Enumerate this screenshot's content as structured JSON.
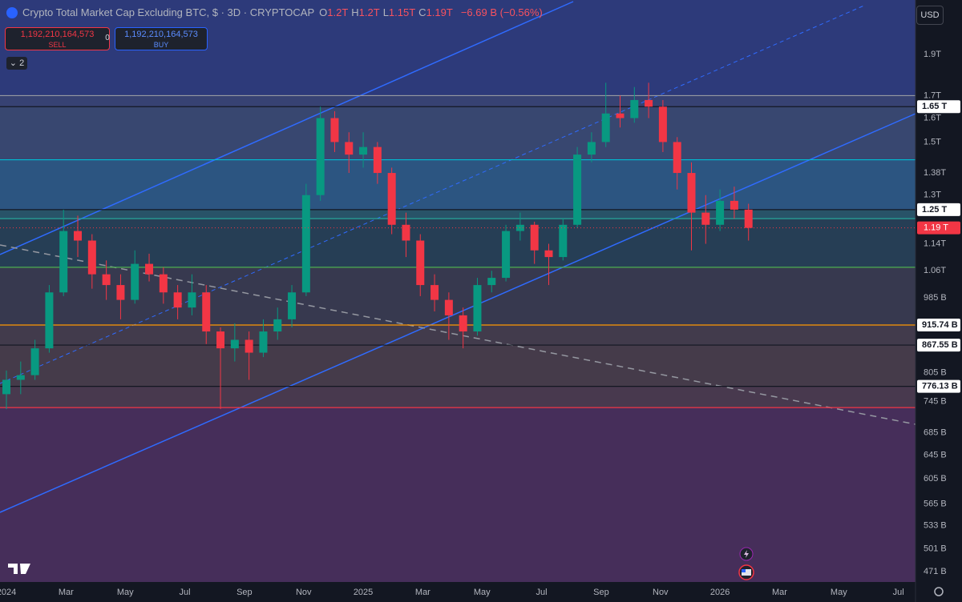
{
  "header": {
    "symbol": "Crypto Total Market Cap Excluding BTC, $ · 3D · CRYPTOCAP",
    "ohlc": [
      {
        "key": "O",
        "value": "1.2T"
      },
      {
        "key": "H",
        "value": "1.2T"
      },
      {
        "key": "L",
        "value": "1.15T"
      },
      {
        "key": "C",
        "value": "1.19T"
      }
    ],
    "change": "−6.69 B (−0.56%)",
    "sell_price": "1,192,210,164,573",
    "sell_label": "SELL",
    "spread": "0",
    "buy_price": "1,192,210,164,573",
    "buy_label": "BUY",
    "indicators": "2",
    "currency": "USD"
  },
  "chart_data": {
    "type": "candlestick",
    "log_scale": true,
    "ylim": [
      458,
      2200
    ],
    "xlim": [
      2023.982,
      2026.548
    ],
    "yticks": [
      {
        "value": 1900,
        "label": "1.9T"
      },
      {
        "value": 1700,
        "label": "1.7T"
      },
      {
        "value": 1600,
        "label": "1.6T"
      },
      {
        "value": 1500,
        "label": "1.5T"
      },
      {
        "value": 1380,
        "label": "1.38T"
      },
      {
        "value": 1300,
        "label": "1.3T"
      },
      {
        "value": 1140,
        "label": "1.14T"
      },
      {
        "value": 1060,
        "label": "1.06T"
      },
      {
        "value": 985,
        "label": "985 B"
      },
      {
        "value": 805,
        "label": "805 B"
      },
      {
        "value": 745,
        "label": "745 B"
      },
      {
        "value": 685,
        "label": "685 B"
      },
      {
        "value": 645,
        "label": "645 B"
      },
      {
        "value": 605,
        "label": "605 B"
      },
      {
        "value": 565,
        "label": "565 B"
      },
      {
        "value": 533,
        "label": "533 B"
      },
      {
        "value": 501,
        "label": "501 B"
      },
      {
        "value": 471,
        "label": "471 B"
      }
    ],
    "xticks": [
      {
        "value": 2024,
        "label": "2024"
      },
      {
        "value": 2024.167,
        "label": "Mar"
      },
      {
        "value": 2024.333,
        "label": "May"
      },
      {
        "value": 2024.5,
        "label": "Jul"
      },
      {
        "value": 2024.667,
        "label": "Sep"
      },
      {
        "value": 2024.833,
        "label": "Nov"
      },
      {
        "value": 2025,
        "label": "2025"
      },
      {
        "value": 2025.167,
        "label": "Mar"
      },
      {
        "value": 2025.333,
        "label": "May"
      },
      {
        "value": 2025.5,
        "label": "Jul"
      },
      {
        "value": 2025.667,
        "label": "Sep"
      },
      {
        "value": 2025.833,
        "label": "Nov"
      },
      {
        "value": 2026,
        "label": "2026"
      },
      {
        "value": 2026.167,
        "label": "Mar"
      },
      {
        "value": 2026.333,
        "label": "May"
      },
      {
        "value": 2026.5,
        "label": "Jul"
      }
    ],
    "levels": [
      {
        "value": 1700,
        "color": "#9598a1"
      },
      {
        "value": 1650,
        "label": "1.65 T",
        "color": "#131722"
      },
      {
        "value": 1430,
        "color": "#00bcd4"
      },
      {
        "value": 1250,
        "label": "1.25 T",
        "color": "#131722"
      },
      {
        "value": 1220,
        "color": "#26a69a"
      },
      {
        "value": 1070,
        "color": "#4caf50"
      },
      {
        "value": 915.74,
        "label": "915.74 B",
        "color": "#ff9800"
      },
      {
        "value": 867.55,
        "label": "867.55 B",
        "color": "#131722"
      },
      {
        "value": 776.13,
        "label": "776.13 B",
        "color": "#131722"
      },
      {
        "value": 733,
        "color": "#f23645"
      }
    ],
    "last_price": {
      "value": 1190,
      "label": "1.19 T",
      "color": "#f23645"
    },
    "up_color": "#089981",
    "down_color": "#f23645",
    "x": [
      2024.0,
      2024.04,
      2024.08,
      2024.12,
      2024.16,
      2024.2,
      2024.24,
      2024.28,
      2024.32,
      2024.36,
      2024.4,
      2024.44,
      2024.48,
      2024.52,
      2024.56,
      2024.6,
      2024.64,
      2024.68,
      2024.72,
      2024.76,
      2024.8,
      2024.84,
      2024.88,
      2024.92,
      2024.96,
      2025.0,
      2025.04,
      2025.08,
      2025.12,
      2025.16,
      2025.2,
      2025.24,
      2025.28,
      2025.32,
      2025.36,
      2025.4,
      2025.44,
      2025.48,
      2025.52,
      2025.56,
      2025.6,
      2025.64,
      2025.68,
      2025.72,
      2025.76,
      2025.8,
      2025.84,
      2025.88,
      2025.92,
      2025.96,
      2026.0,
      2026.04,
      2026.08
    ],
    "open": [
      760,
      790,
      800,
      860,
      1000,
      1180,
      1150,
      1050,
      1020,
      980,
      1080,
      1050,
      1000,
      960,
      1000,
      900,
      860,
      880,
      850,
      900,
      930,
      1000,
      1300,
      1600,
      1500,
      1450,
      1480,
      1380,
      1200,
      1150,
      1020,
      980,
      940,
      900,
      1020,
      1040,
      1180,
      1200,
      1120,
      1100,
      1200,
      1450,
      1500,
      1620,
      1600,
      1680,
      1650,
      1500,
      1380,
      1240,
      1200,
      1280,
      1250
    ],
    "high": [
      810,
      830,
      880,
      1020,
      1250,
      1230,
      1170,
      1090,
      1050,
      1120,
      1110,
      1070,
      1020,
      1050,
      1020,
      910,
      920,
      900,
      930,
      960,
      1020,
      1340,
      1650,
      1630,
      1540,
      1540,
      1500,
      1400,
      1240,
      1170,
      1050,
      1000,
      960,
      1040,
      1060,
      1200,
      1240,
      1210,
      1140,
      1220,
      1480,
      1540,
      1760,
      1700,
      1740,
      1760,
      1680,
      1520,
      1420,
      1300,
      1320,
      1330,
      1270
    ],
    "low": [
      730,
      760,
      790,
      850,
      990,
      1100,
      1010,
      980,
      930,
      970,
      1030,
      970,
      930,
      940,
      870,
      730,
      830,
      790,
      840,
      880,
      910,
      990,
      1280,
      1460,
      1380,
      1400,
      1340,
      1170,
      1100,
      990,
      950,
      880,
      860,
      890,
      1000,
      1030,
      1150,
      1080,
      1020,
      1090,
      1190,
      1420,
      1480,
      1560,
      1580,
      1600,
      1460,
      1320,
      1120,
      1140,
      1180,
      1220,
      1150
    ],
    "close": [
      790,
      800,
      860,
      1000,
      1180,
      1150,
      1050,
      1020,
      980,
      1080,
      1050,
      1000,
      960,
      1000,
      900,
      860,
      880,
      850,
      900,
      930,
      1000,
      1300,
      1600,
      1500,
      1450,
      1480,
      1380,
      1200,
      1150,
      1020,
      980,
      940,
      900,
      1020,
      1040,
      1180,
      1200,
      1120,
      1100,
      1200,
      1450,
      1500,
      1620,
      1600,
      1680,
      1650,
      1500,
      1380,
      1240,
      1200,
      1280,
      1250,
      1190
    ]
  }
}
